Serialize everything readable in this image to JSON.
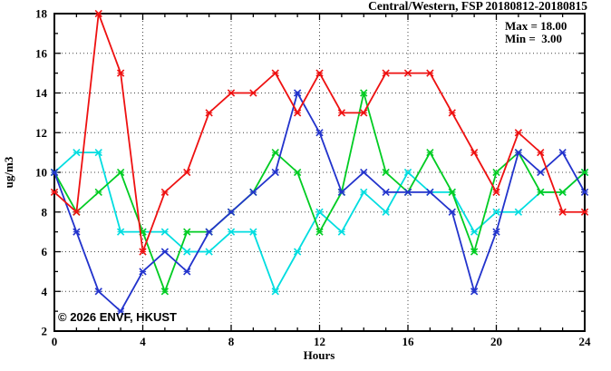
{
  "title": "Central/Western, FSP 20180812-20180815",
  "legend": {
    "max_label": "Max = 18.00",
    "min_label": "Min =  3.00"
  },
  "watermark": "© 2026 ENVF, HKUST",
  "axes": {
    "xlabel": "Hours",
    "ylabel": "ug/m3"
  },
  "chart_data": {
    "type": "line",
    "title": "Central/Western, FSP 20180812-20180815",
    "xlabel": "Hours",
    "ylabel": "ug/m3",
    "xlim": [
      0,
      24
    ],
    "ylim": [
      2,
      18
    ],
    "x_major_ticks": [
      0,
      4,
      8,
      12,
      16,
      20,
      24
    ],
    "y_major_ticks": [
      2,
      4,
      6,
      8,
      10,
      12,
      14,
      16,
      18
    ],
    "x_minor_step": 1,
    "y_minor_step": 1,
    "grid": "dotted-at-major-ticks",
    "legend_position": "top-right-inside",
    "annotations": [
      "Max = 18.00",
      "Min =  3.00"
    ],
    "x": [
      0,
      1,
      2,
      3,
      4,
      5,
      6,
      7,
      8,
      9,
      10,
      11,
      12,
      13,
      14,
      15,
      16,
      17,
      18,
      19,
      20,
      21,
      22,
      23,
      24
    ],
    "series": [
      {
        "name": "cyan-line",
        "color": "#00dde0",
        "values": [
          10,
          11,
          11,
          7,
          7,
          7,
          6,
          6,
          7,
          7,
          4,
          6,
          8,
          7,
          9,
          8,
          10,
          9,
          9,
          7,
          8,
          8,
          9,
          9,
          10
        ]
      },
      {
        "name": "green-line",
        "color": "#00cc22",
        "values": [
          10,
          8,
          9,
          10,
          7,
          4,
          7,
          7,
          8,
          9,
          11,
          10,
          7,
          9,
          14,
          10,
          9,
          11,
          9,
          6,
          10,
          11,
          9,
          9,
          10
        ]
      },
      {
        "name": "blue-line",
        "color": "#2233cc",
        "values": [
          10,
          7,
          4,
          3,
          5,
          6,
          5,
          7,
          8,
          9,
          10,
          14,
          12,
          9,
          10,
          9,
          9,
          9,
          8,
          4,
          7,
          11,
          10,
          11,
          9
        ]
      },
      {
        "name": "red-line",
        "color": "#ee1111",
        "values": [
          9,
          8,
          18,
          15,
          6,
          9,
          10,
          13,
          14,
          14,
          15,
          13,
          15,
          13,
          13,
          15,
          15,
          15,
          13,
          11,
          9,
          12,
          11,
          8,
          8
        ]
      }
    ]
  },
  "colors": {
    "frame": "#000000",
    "grid": "#444444",
    "watermark": "#ccd9e2"
  }
}
